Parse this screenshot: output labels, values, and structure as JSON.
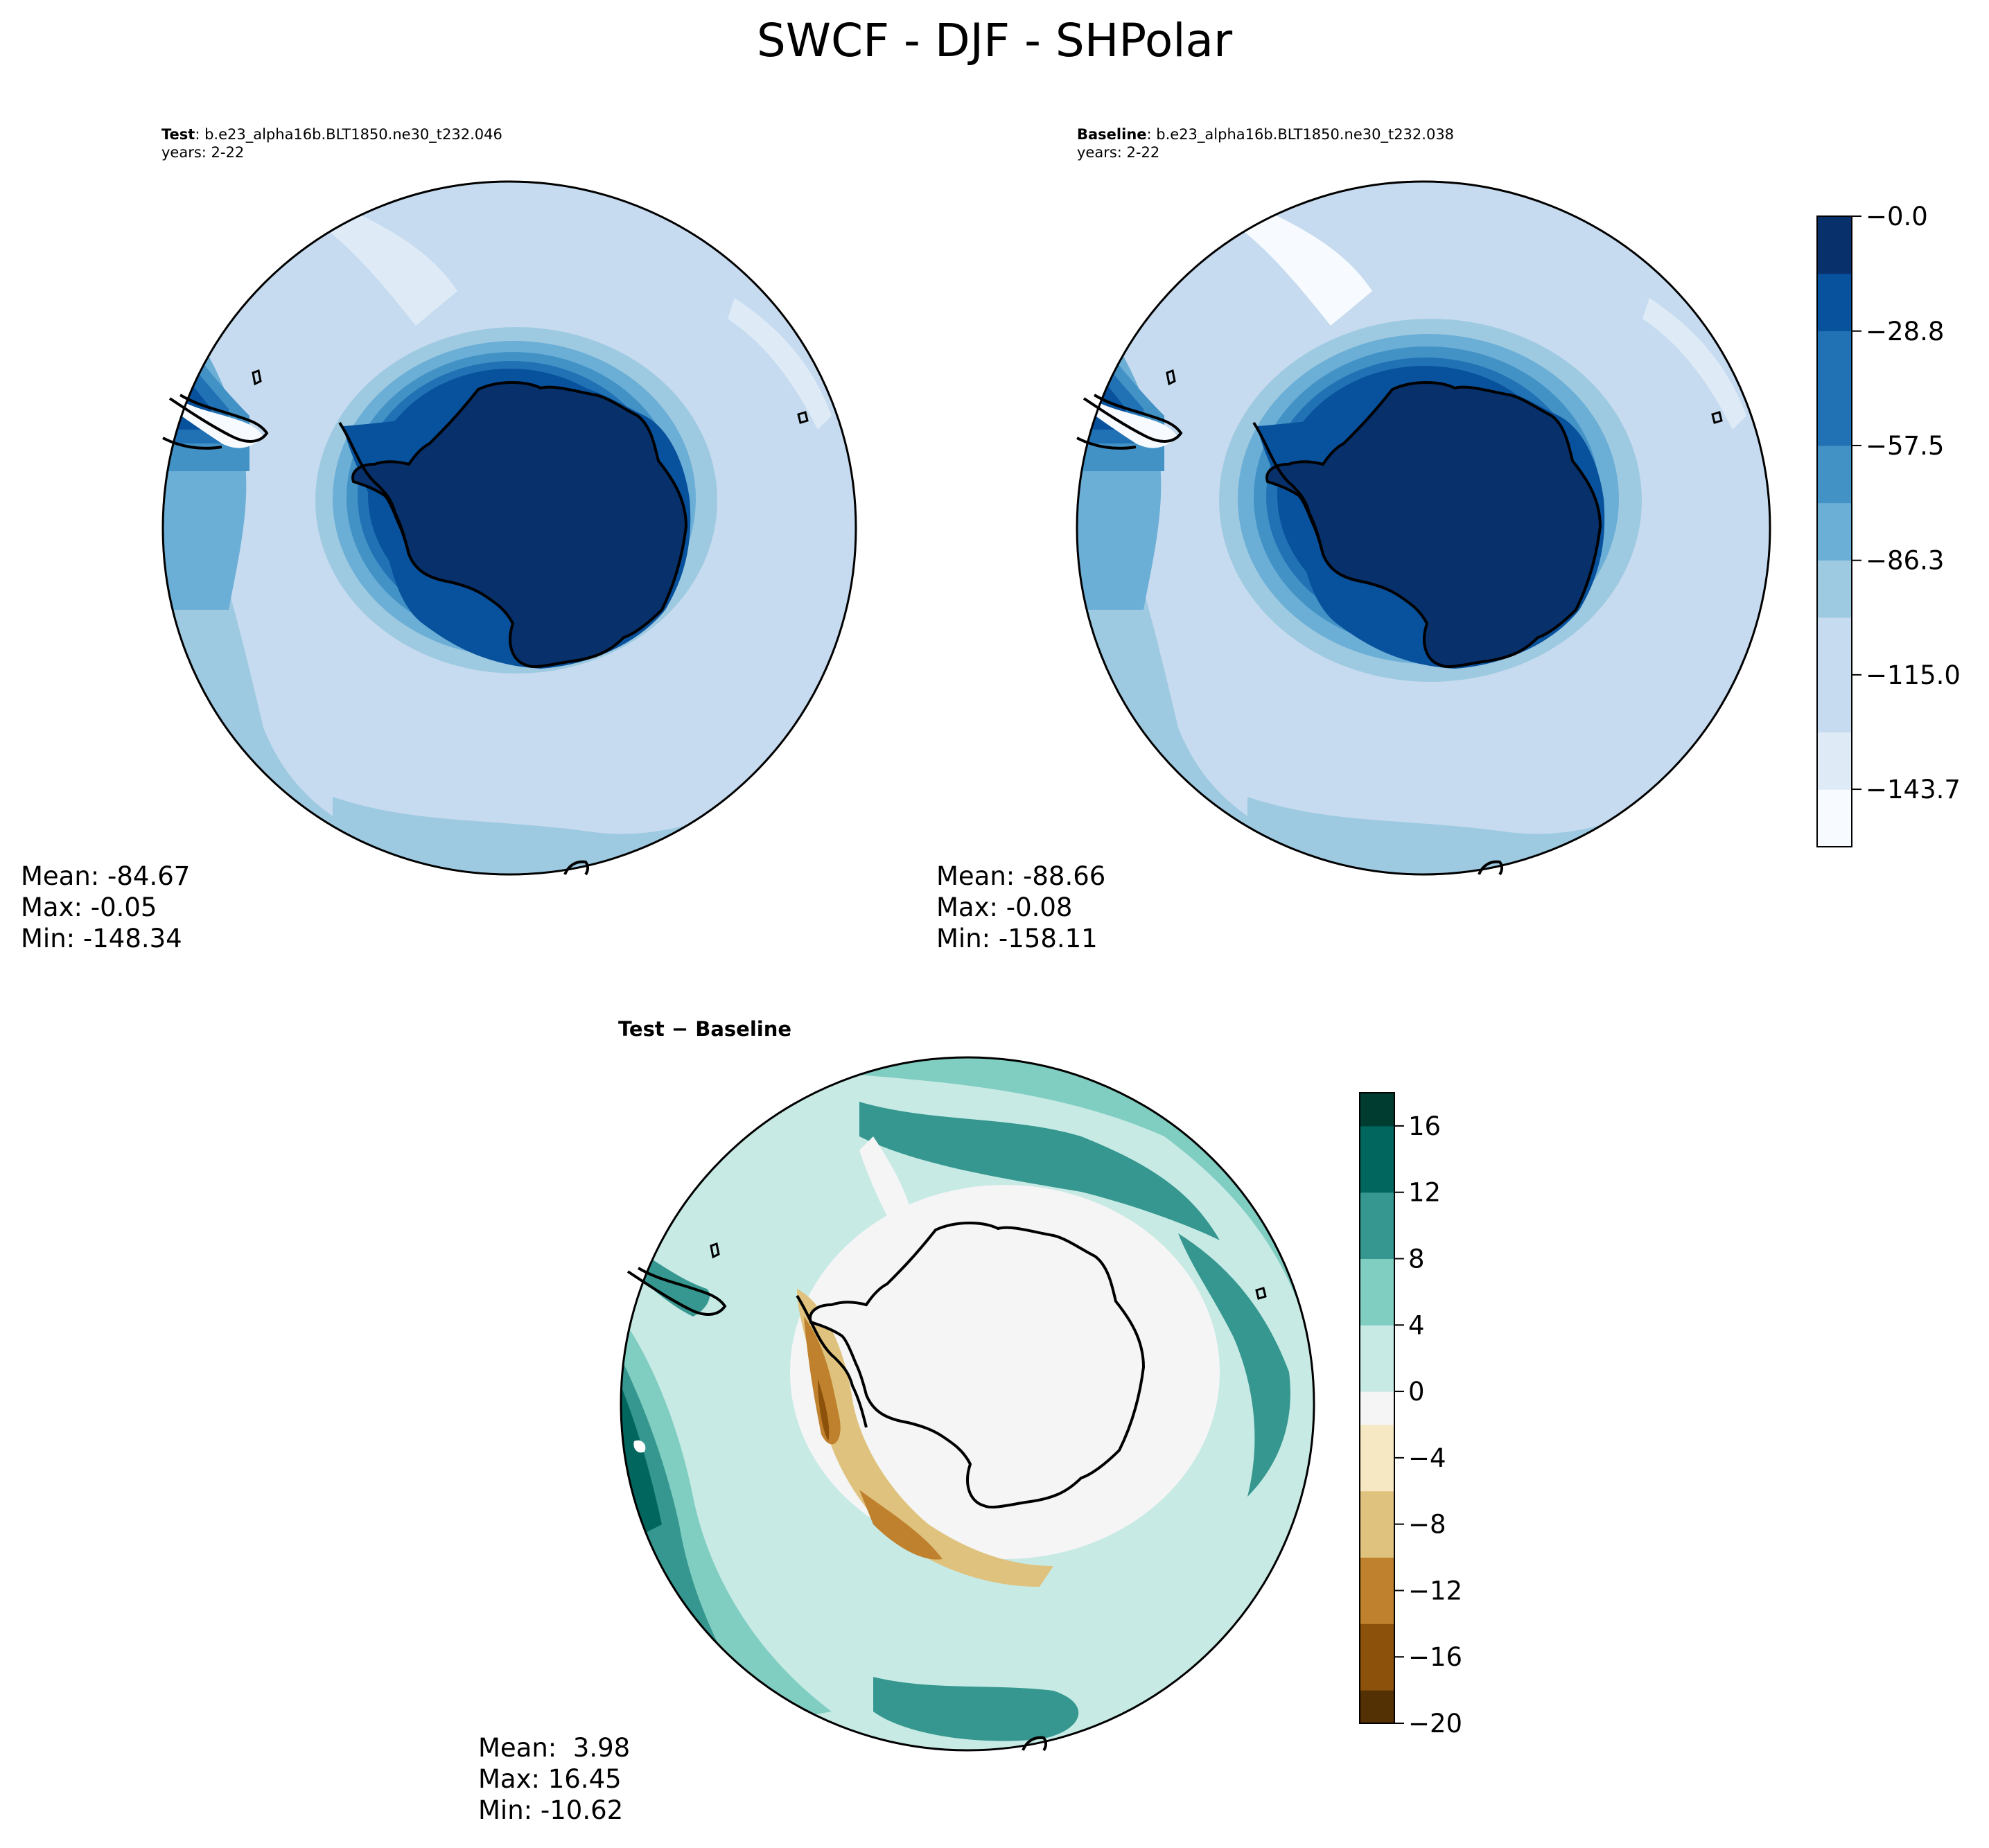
{
  "figure": {
    "suptitle": "SWCF - DJF - SHPolar"
  },
  "colors": {
    "blues": [
      "#f7fbff",
      "#deebf7",
      "#c6dbef",
      "#9ecae1",
      "#6baed6",
      "#4292c6",
      "#2171b5",
      "#08519c",
      "#08306b"
    ],
    "brbg": [
      "#543005",
      "#8c510a",
      "#bf812d",
      "#dfc27d",
      "#f6e8c3",
      "#f5f5f5",
      "#c7eae5",
      "#80cdc1",
      "#35978f",
      "#01665e",
      "#003c30"
    ],
    "coastline": "#000000"
  },
  "chart_data": [
    {
      "type": "heatmap",
      "projection": "south-polar-stereographic",
      "panel": "test",
      "label": "Test",
      "case": ": b.e23_alpha16b.BLT1850.ne30_t232.046",
      "years": "years: 2-22",
      "stats": {
        "mean": "Mean: -84.67",
        "max": "Max: -0.05",
        "min": "Min: -148.34"
      },
      "colorscale": "Blues",
      "range": [
        -158.11,
        0.0
      ]
    },
    {
      "type": "heatmap",
      "projection": "south-polar-stereographic",
      "panel": "baseline",
      "label": "Baseline",
      "case": ": b.e23_alpha16b.BLT1850.ne30_t232.038",
      "years": "years: 2-22",
      "stats": {
        "mean": "Mean: -88.66",
        "max": "Max: -0.08",
        "min": "Min: -158.11"
      },
      "colorscale": "Blues",
      "range": [
        -158.11,
        0.0
      ],
      "colorbar": {
        "ticks": [
          -143.7,
          -115.0,
          -86.3,
          -57.5,
          -28.8,
          -0.0
        ],
        "tick_labels": [
          "−143.7",
          "−115.0",
          "−86.3",
          "−57.5",
          "−28.8",
          "−0.0"
        ],
        "levels": 11
      }
    },
    {
      "type": "heatmap",
      "projection": "south-polar-stereographic",
      "panel": "difference",
      "title": "Test − Baseline",
      "stats": {
        "mean": "Mean:  3.98",
        "max": "Max: 16.45",
        "min": "Min: -10.62"
      },
      "colorscale": "BrBG",
      "range": [
        -20,
        18
      ],
      "colorbar": {
        "ticks": [
          -20,
          -16,
          -12,
          -8,
          -4,
          0,
          4,
          8,
          12,
          16
        ],
        "tick_labels": [
          "−20",
          "−16",
          "−12",
          "−8",
          "−4",
          "0",
          "4",
          "8",
          "12",
          "16"
        ]
      }
    }
  ]
}
